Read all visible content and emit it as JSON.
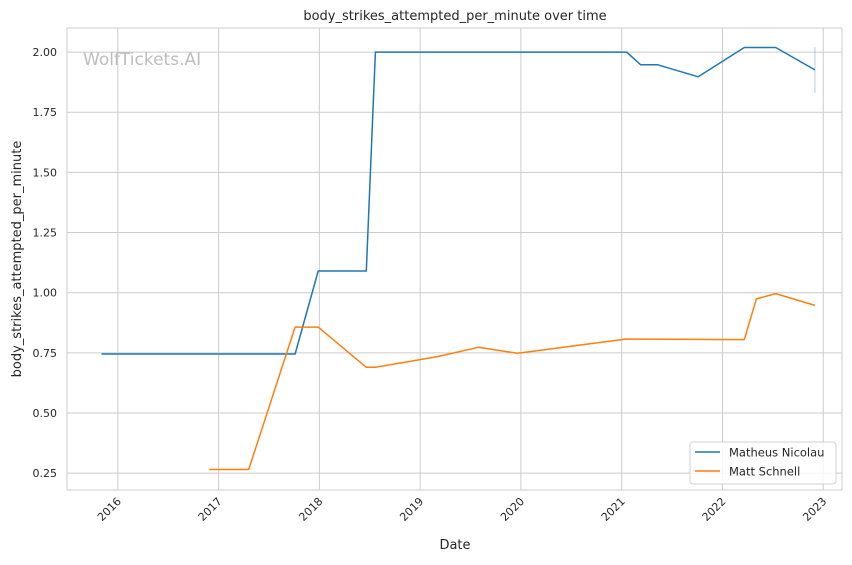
{
  "chart_data": {
    "type": "line",
    "title": "body_strikes_attempted_per_minute over time",
    "xlabel": "Date",
    "ylabel": "body_strikes_attempted_per_minute",
    "watermark": "WolfTickets.AI",
    "x_ticks": [
      "2016",
      "2017",
      "2018",
      "2019",
      "2020",
      "2021",
      "2022",
      "2023"
    ],
    "y_ticks": [
      "0.25",
      "0.50",
      "0.75",
      "1.00",
      "1.25",
      "1.50",
      "1.75",
      "2.00"
    ],
    "xlim": [
      "2015-07-01",
      "2023-03-10"
    ],
    "ylim": [
      0.18,
      2.1
    ],
    "grid": true,
    "legend_position": "bottom-right",
    "series": [
      {
        "name": "Matheus Nicolau",
        "color": "#1f77b4",
        "points": [
          [
            "2015-11-03",
            0.745
          ],
          [
            "2017-10-05",
            0.745
          ],
          [
            "2017-12-28",
            1.09
          ],
          [
            "2018-06-20",
            1.09
          ],
          [
            "2018-07-23",
            2.0
          ],
          [
            "2021-01-19",
            2.0
          ],
          [
            "2021-03-11",
            1.947
          ],
          [
            "2021-05-12",
            1.947
          ],
          [
            "2021-10-05",
            1.897
          ],
          [
            "2022-03-21",
            2.019
          ],
          [
            "2022-07-13",
            2.019
          ],
          [
            "2022-12-02",
            1.926
          ]
        ],
        "end_range": [
          1.83,
          2.02
        ]
      },
      {
        "name": "Matt Schnell",
        "color": "#ff7f0e",
        "points": [
          [
            "2016-11-28",
            0.265
          ],
          [
            "2017-04-20",
            0.265
          ],
          [
            "2017-10-05",
            0.857
          ],
          [
            "2017-12-28",
            0.857
          ],
          [
            "2018-06-20",
            0.69
          ],
          [
            "2018-07-23",
            0.69
          ],
          [
            "2019-03-07",
            0.735
          ],
          [
            "2019-07-31",
            0.773
          ],
          [
            "2019-12-20",
            0.748
          ],
          [
            "2021-01-15",
            0.807
          ],
          [
            "2022-03-21",
            0.805
          ],
          [
            "2022-05-04",
            0.974
          ],
          [
            "2022-07-13",
            0.996
          ],
          [
            "2022-12-02",
            0.947
          ]
        ]
      }
    ]
  }
}
